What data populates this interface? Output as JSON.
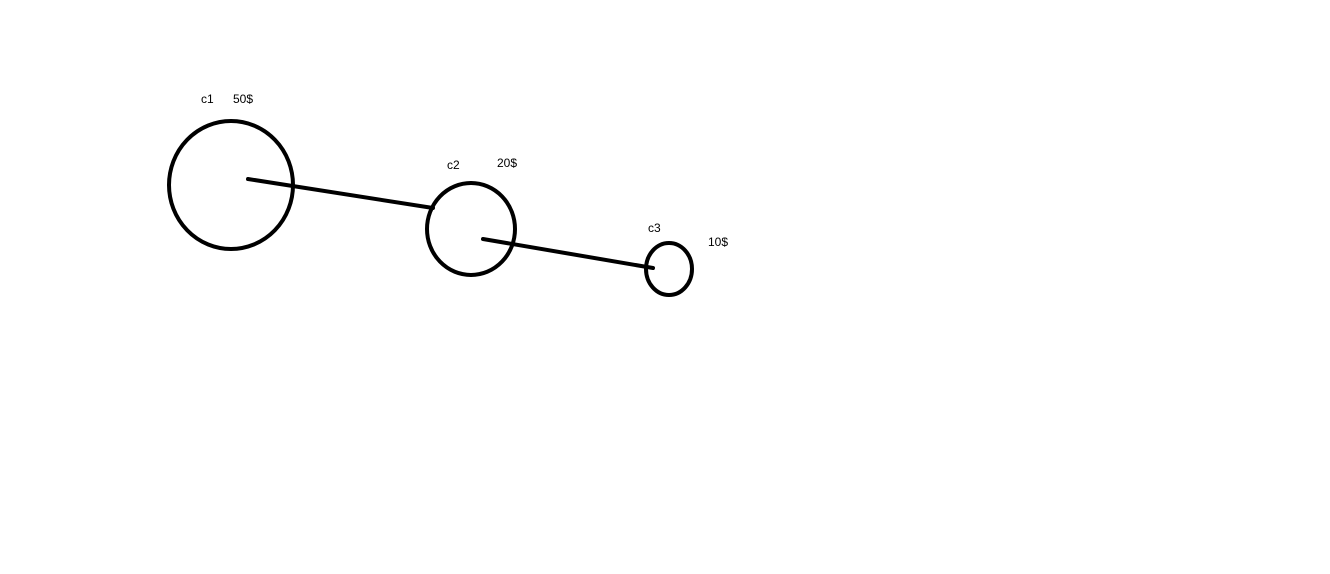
{
  "diagram": {
    "nodes": [
      {
        "id": "c1",
        "name": "c1",
        "value": "50$"
      },
      {
        "id": "c2",
        "name": "c2",
        "value": "20$"
      },
      {
        "id": "c3",
        "name": "c3",
        "value": "10$"
      }
    ],
    "edges": [
      {
        "from": "c1",
        "to": "c2"
      },
      {
        "from": "c2",
        "to": "c3"
      }
    ],
    "colors": {
      "background": "#ffffff",
      "stroke": "#000000",
      "text": "#000000"
    }
  }
}
